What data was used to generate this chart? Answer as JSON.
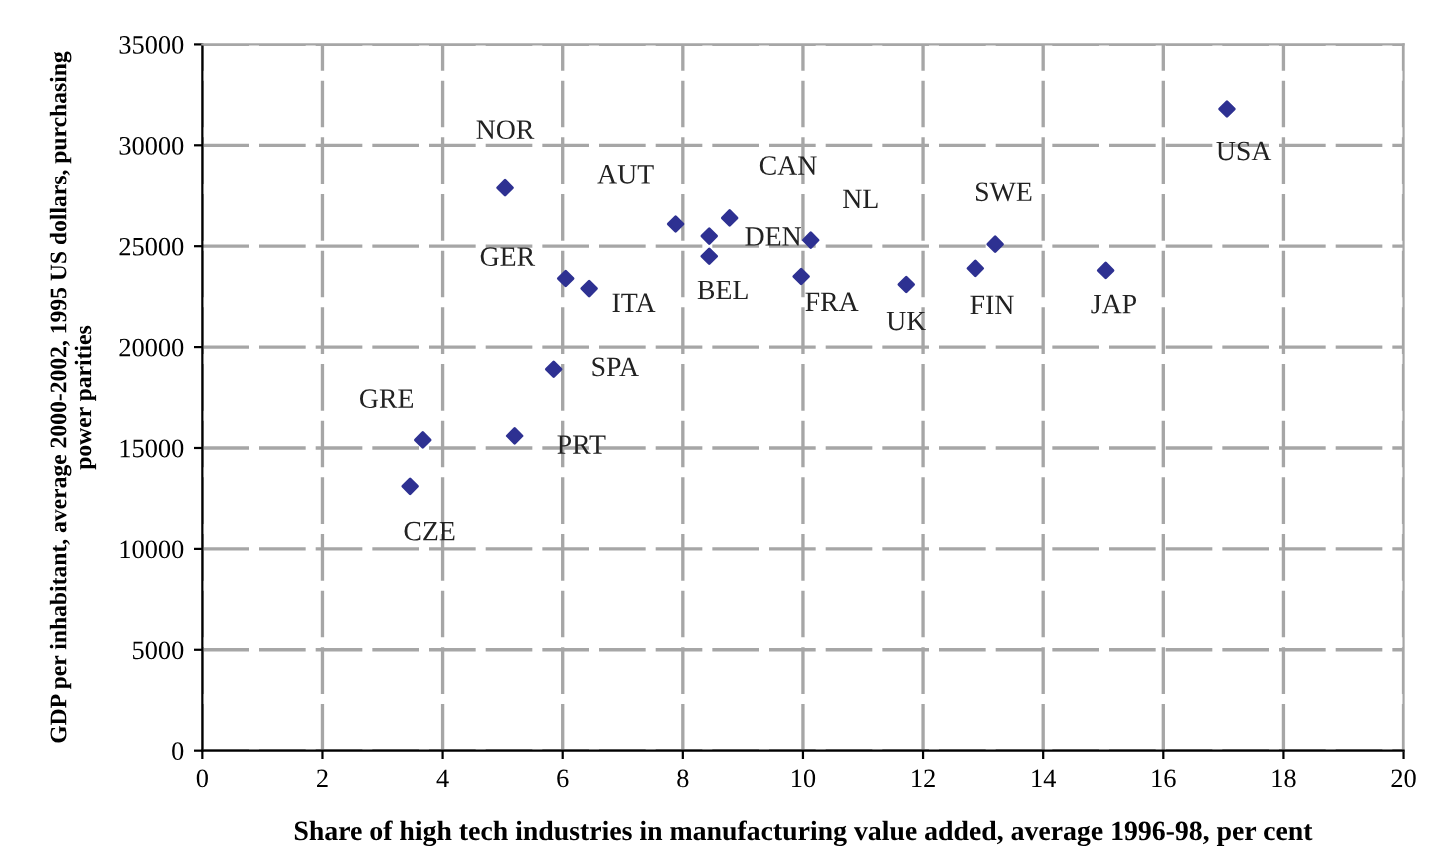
{
  "chart_data": {
    "type": "scatter",
    "xlabel": "Share of high tech industries in manufacturing value added, average 1996-98, per cent",
    "ylabel": "GDP per inhabitant, average 2000-2002, 1995 US dollars, purchasing\npower parities",
    "x": [
      5.04,
      7.88,
      8.78,
      8.44,
      8.44,
      6.05,
      6.44,
      5.85,
      3.67,
      5.2,
      3.46,
      10.13,
      9.97,
      11.72,
      12.87,
      13.2,
      15.04,
      17.06
    ],
    "series": [
      {
        "color": "#2e3192",
        "values": [
          27900,
          26100,
          26400,
          25500,
          24500,
          23400,
          22900,
          18900,
          15400,
          15600,
          13100,
          25300,
          23500,
          23100,
          23900,
          25100,
          23800,
          31800
        ]
      }
    ],
    "annotations": [
      {
        "text": "NOR",
        "x": 5.04,
        "y": 27900
      },
      {
        "text": "AUT",
        "x": 7.88,
        "y": 26100
      },
      {
        "text": "CAN",
        "x": 8.78,
        "y": 26400
      },
      {
        "text": "DEN",
        "x": 8.44,
        "y": 25500
      },
      {
        "text": "BEL",
        "x": 8.44,
        "y": 24500
      },
      {
        "text": "GER",
        "x": 6.05,
        "y": 23400
      },
      {
        "text": "ITA",
        "x": 6.44,
        "y": 22900
      },
      {
        "text": "SPA",
        "x": 5.85,
        "y": 18900
      },
      {
        "text": "GRE",
        "x": 3.67,
        "y": 15400
      },
      {
        "text": "PRT",
        "x": 5.2,
        "y": 15600
      },
      {
        "text": "CZE",
        "x": 3.46,
        "y": 13100
      },
      {
        "text": "NL",
        "x": 10.13,
        "y": 25300
      },
      {
        "text": "FRA",
        "x": 9.97,
        "y": 23500
      },
      {
        "text": "UK",
        "x": 11.72,
        "y": 23100
      },
      {
        "text": "FIN",
        "x": 12.87,
        "y": 23900
      },
      {
        "text": "SWE",
        "x": 13.2,
        "y": 25100
      },
      {
        "text": "JAP",
        "x": 15.04,
        "y": 23800
      },
      {
        "text": "USA",
        "x": 17.06,
        "y": 31800
      }
    ],
    "xlim": [
      0,
      20
    ],
    "xticks": [
      0,
      2,
      4,
      6,
      8,
      10,
      12,
      14,
      16,
      18,
      20
    ],
    "ylim": [
      0,
      35000
    ],
    "yticks": [
      0,
      5000,
      10000,
      15000,
      20000,
      25000,
      30000,
      35000
    ],
    "grid": true,
    "marker": "diamond"
  }
}
